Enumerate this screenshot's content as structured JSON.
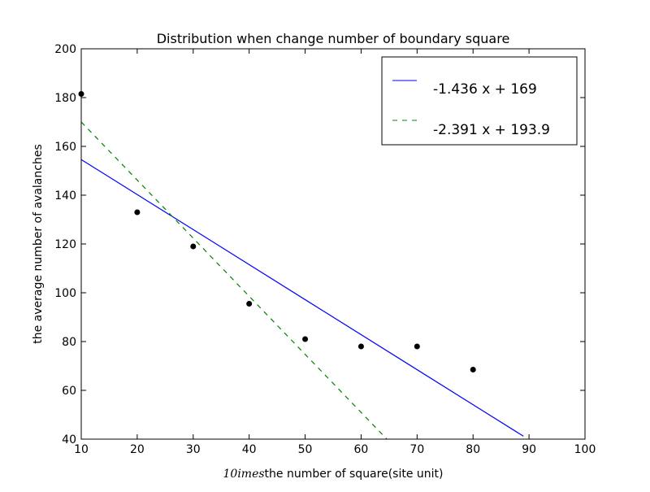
{
  "chart_data": {
    "type": "scatter",
    "title": "Distribution when change number of boundary square",
    "xlabel_math": "10imes",
    "xlabel": "the number of square(site unit)",
    "ylabel": "the average number of avalanches",
    "xlim": [
      10,
      100
    ],
    "ylim": [
      40,
      200
    ],
    "xticks": [
      10,
      20,
      30,
      40,
      50,
      60,
      70,
      80,
      90,
      100
    ],
    "yticks": [
      40,
      60,
      80,
      100,
      120,
      140,
      160,
      180,
      200
    ],
    "grid": false,
    "legend_position": "top-right",
    "points": {
      "x": [
        10,
        20,
        30,
        40,
        50,
        60,
        70,
        80
      ],
      "y": [
        181.5,
        133,
        119,
        95.5,
        81,
        78,
        78,
        68.5
      ],
      "color": "#000000"
    },
    "series": [
      {
        "name": "-1.436 x + 169",
        "style": "solid",
        "color": "#0000ff",
        "x": [
          10,
          89
        ],
        "y": [
          154.6,
          41.2
        ]
      },
      {
        "name": "-2.391 x + 193.9",
        "style": "dashed",
        "color": "#008000",
        "x": [
          10,
          64.6
        ],
        "y": [
          170,
          40
        ]
      }
    ]
  }
}
